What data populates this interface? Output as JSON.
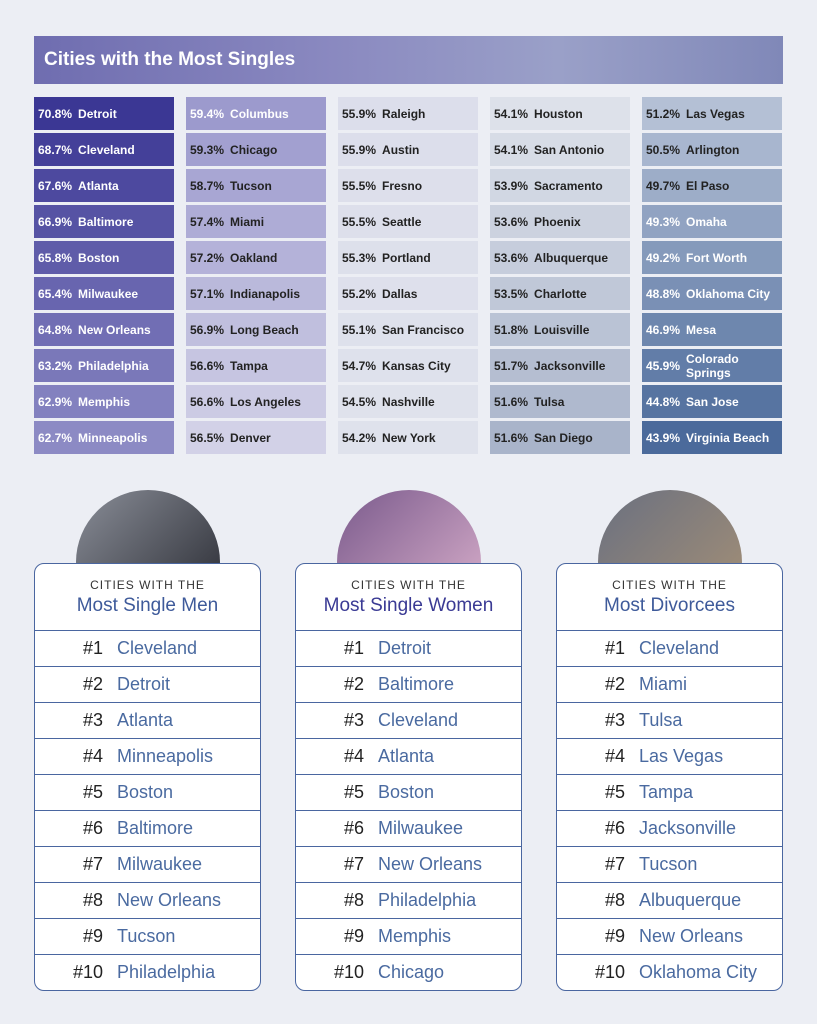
{
  "header": {
    "title": "Cities with the Most Singles"
  },
  "grid": [
    {
      "pct": "70.8%",
      "city": "Detroit"
    },
    {
      "pct": "68.7%",
      "city": "Cleveland"
    },
    {
      "pct": "67.6%",
      "city": "Atlanta"
    },
    {
      "pct": "66.9%",
      "city": "Baltimore"
    },
    {
      "pct": "65.8%",
      "city": "Boston"
    },
    {
      "pct": "65.4%",
      "city": "Milwaukee"
    },
    {
      "pct": "64.8%",
      "city": "New Orleans"
    },
    {
      "pct": "63.2%",
      "city": "Philadelphia"
    },
    {
      "pct": "62.9%",
      "city": "Memphis"
    },
    {
      "pct": "62.7%",
      "city": "Minneapolis"
    },
    {
      "pct": "59.4%",
      "city": "Columbus"
    },
    {
      "pct": "59.3%",
      "city": "Chicago"
    },
    {
      "pct": "58.7%",
      "city": "Tucson"
    },
    {
      "pct": "57.4%",
      "city": "Miami"
    },
    {
      "pct": "57.2%",
      "city": "Oakland"
    },
    {
      "pct": "57.1%",
      "city": "Indianapolis"
    },
    {
      "pct": "56.9%",
      "city": "Long Beach"
    },
    {
      "pct": "56.6%",
      "city": "Tampa"
    },
    {
      "pct": "56.6%",
      "city": "Los Angeles"
    },
    {
      "pct": "56.5%",
      "city": "Denver"
    },
    {
      "pct": "55.9%",
      "city": "Raleigh"
    },
    {
      "pct": "55.9%",
      "city": "Austin"
    },
    {
      "pct": "55.5%",
      "city": "Fresno"
    },
    {
      "pct": "55.5%",
      "city": "Seattle"
    },
    {
      "pct": "55.3%",
      "city": "Portland"
    },
    {
      "pct": "55.2%",
      "city": "Dallas"
    },
    {
      "pct": "55.1%",
      "city": "San Francisco"
    },
    {
      "pct": "54.7%",
      "city": "Kansas City"
    },
    {
      "pct": "54.5%",
      "city": "Nashville"
    },
    {
      "pct": "54.2%",
      "city": "New York"
    },
    {
      "pct": "54.1%",
      "city": "Houston"
    },
    {
      "pct": "54.1%",
      "city": "San Antonio"
    },
    {
      "pct": "53.9%",
      "city": "Sacramento"
    },
    {
      "pct": "53.6%",
      "city": "Phoenix"
    },
    {
      "pct": "53.6%",
      "city": "Albuquerque"
    },
    {
      "pct": "53.5%",
      "city": "Charlotte"
    },
    {
      "pct": "51.8%",
      "city": "Louisville"
    },
    {
      "pct": "51.7%",
      "city": "Jacksonville"
    },
    {
      "pct": "51.6%",
      "city": "Tulsa"
    },
    {
      "pct": "51.6%",
      "city": "San Diego"
    },
    {
      "pct": "51.2%",
      "city": "Las Vegas"
    },
    {
      "pct": "50.5%",
      "city": "Arlington"
    },
    {
      "pct": "49.7%",
      "city": "El Paso"
    },
    {
      "pct": "49.3%",
      "city": "Omaha"
    },
    {
      "pct": "49.2%",
      "city": "Fort Worth"
    },
    {
      "pct": "48.8%",
      "city": "Oklahoma City"
    },
    {
      "pct": "46.9%",
      "city": "Mesa"
    },
    {
      "pct": "45.9%",
      "city": "Colorado Springs"
    },
    {
      "pct": "44.8%",
      "city": "San Jose"
    },
    {
      "pct": "43.9%",
      "city": "Virginia Beach"
    }
  ],
  "cards": [
    {
      "subtitle": "CITIES WITH THE",
      "title": "Most Single Men",
      "items": [
        {
          "rank": "#1",
          "city": "Cleveland"
        },
        {
          "rank": "#2",
          "city": "Detroit"
        },
        {
          "rank": "#3",
          "city": "Atlanta"
        },
        {
          "rank": "#4",
          "city": "Minneapolis"
        },
        {
          "rank": "#5",
          "city": "Boston"
        },
        {
          "rank": "#6",
          "city": "Baltimore"
        },
        {
          "rank": "#7",
          "city": "Milwaukee"
        },
        {
          "rank": "#8",
          "city": "New Orleans"
        },
        {
          "rank": "#9",
          "city": "Tucson"
        },
        {
          "rank": "#10",
          "city": "Philadelphia"
        }
      ]
    },
    {
      "subtitle": "CITIES WITH THE",
      "title": "Most Single Women",
      "items": [
        {
          "rank": "#1",
          "city": "Detroit"
        },
        {
          "rank": "#2",
          "city": "Baltimore"
        },
        {
          "rank": "#3",
          "city": "Cleveland"
        },
        {
          "rank": "#4",
          "city": "Atlanta"
        },
        {
          "rank": "#5",
          "city": "Boston"
        },
        {
          "rank": "#6",
          "city": "Milwaukee"
        },
        {
          "rank": "#7",
          "city": "New Orleans"
        },
        {
          "rank": "#8",
          "city": "Philadelphia"
        },
        {
          "rank": "#9",
          "city": "Memphis"
        },
        {
          "rank": "#10",
          "city": "Chicago"
        }
      ]
    },
    {
      "subtitle": "CITIES WITH THE",
      "title": "Most Divorcees",
      "items": [
        {
          "rank": "#1",
          "city": "Cleveland"
        },
        {
          "rank": "#2",
          "city": "Miami"
        },
        {
          "rank": "#3",
          "city": "Tulsa"
        },
        {
          "rank": "#4",
          "city": "Las Vegas"
        },
        {
          "rank": "#5",
          "city": "Tampa"
        },
        {
          "rank": "#6",
          "city": "Jacksonville"
        },
        {
          "rank": "#7",
          "city": "Tucson"
        },
        {
          "rank": "#8",
          "city": "Albuquerque"
        },
        {
          "rank": "#9",
          "city": "New Orleans"
        },
        {
          "rank": "#10",
          "city": "Oklahoma City"
        }
      ]
    }
  ]
}
